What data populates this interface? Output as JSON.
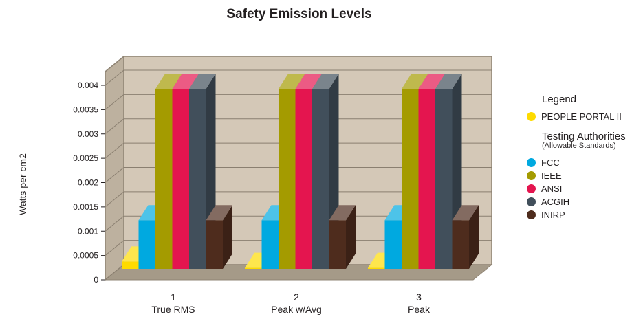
{
  "chart_data": {
    "type": "bar",
    "title": "Safety Emission Levels",
    "ylabel": "Watts per cm2",
    "ylim": [
      0,
      0.004
    ],
    "yticks": [
      "0",
      "0.0005",
      "0.001",
      "0.0015",
      "0.002",
      "0.0025",
      "0.003",
      "0.0035",
      "0.004"
    ],
    "categories": [
      {
        "num": "1",
        "label": "True RMS"
      },
      {
        "num": "2",
        "label": "Peak w/Avg"
      },
      {
        "num": "3",
        "label": "Peak"
      }
    ],
    "series": [
      {
        "name": "PEOPLE PORTAL II",
        "color": "#fedb00",
        "values": [
          0.00015,
          2e-05,
          2e-05
        ]
      },
      {
        "name": "FCC",
        "color": "#00a9e0",
        "values": [
          0.001,
          0.001,
          0.001
        ]
      },
      {
        "name": "IEEE",
        "color": "#a49b00",
        "values": [
          0.0037,
          0.0037,
          0.0037
        ]
      },
      {
        "name": "ANSI",
        "color": "#e4154f",
        "values": [
          0.0037,
          0.0037,
          0.0037
        ]
      },
      {
        "name": "ACGIH",
        "color": "#414f5b",
        "values": [
          0.0037,
          0.0037,
          0.0037
        ]
      },
      {
        "name": "INIRP",
        "color": "#4e2c1d",
        "values": [
          0.001,
          0.001,
          0.001
        ]
      }
    ],
    "grid": true,
    "legend_position": "right"
  },
  "legend": {
    "title": "Legend",
    "group2_title": "Testing Authorities",
    "group2_subtitle": "(Allowable Standards)"
  }
}
